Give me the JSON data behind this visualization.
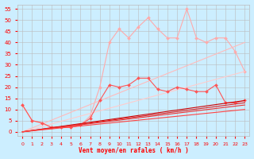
{
  "xlabel": "Vent moyen/en rafales ( km/h )",
  "ylabel": "",
  "xlim": [
    -0.5,
    23.5
  ],
  "ylim": [
    -2,
    57
  ],
  "yticks": [
    0,
    5,
    10,
    15,
    20,
    25,
    30,
    35,
    40,
    45,
    50,
    55
  ],
  "xticks": [
    0,
    1,
    2,
    3,
    4,
    5,
    6,
    7,
    8,
    9,
    10,
    11,
    12,
    13,
    14,
    15,
    16,
    17,
    18,
    19,
    20,
    21,
    22,
    23
  ],
  "background_color": "#cceeff",
  "grid_color": "#bbbbbb",
  "lines": [
    {
      "x": [
        0,
        1,
        2,
        3,
        4,
        5,
        6,
        7,
        8,
        9,
        10,
        11,
        12,
        13,
        14,
        15,
        16,
        17,
        18,
        19,
        20,
        21,
        22,
        23
      ],
      "y": [
        12,
        5,
        4,
        2,
        2,
        2,
        3,
        7,
        20,
        40,
        46,
        42,
        47,
        51,
        46,
        42,
        42,
        55,
        42,
        40,
        42,
        42,
        36,
        27
      ],
      "color": "#ffaaaa",
      "lw": 0.8,
      "marker": "D",
      "ms": 2.0,
      "alpha": 1.0
    },
    {
      "x": [
        0,
        23
      ],
      "y": [
        0,
        40
      ],
      "color": "#ffbbbb",
      "lw": 0.8,
      "marker": null,
      "ms": 0,
      "alpha": 1.0
    },
    {
      "x": [
        0,
        23
      ],
      "y": [
        0,
        27
      ],
      "color": "#ffcccc",
      "lw": 0.8,
      "marker": null,
      "ms": 0,
      "alpha": 1.0
    },
    {
      "x": [
        0,
        1,
        2,
        3,
        4,
        5,
        6,
        7,
        8,
        9,
        10,
        11,
        12,
        13,
        14,
        15,
        16,
        17,
        18,
        19,
        20,
        21,
        22,
        23
      ],
      "y": [
        12,
        5,
        4,
        2,
        2,
        2,
        3,
        6,
        14,
        21,
        20,
        21,
        24,
        24,
        19,
        18,
        20,
        19,
        18,
        18,
        21,
        13,
        13,
        14
      ],
      "color": "#ff5555",
      "lw": 0.8,
      "marker": "D",
      "ms": 2.0,
      "alpha": 1.0
    },
    {
      "x": [
        0,
        23
      ],
      "y": [
        0,
        14
      ],
      "color": "#cc0000",
      "lw": 0.8,
      "marker": null,
      "ms": 0,
      "alpha": 1.0
    },
    {
      "x": [
        0,
        23
      ],
      "y": [
        0,
        13
      ],
      "color": "#dd2222",
      "lw": 0.8,
      "marker": null,
      "ms": 0,
      "alpha": 1.0
    },
    {
      "x": [
        0,
        23
      ],
      "y": [
        0,
        12
      ],
      "color": "#ee3333",
      "lw": 0.8,
      "marker": null,
      "ms": 0,
      "alpha": 1.0
    },
    {
      "x": [
        0,
        23
      ],
      "y": [
        0,
        10
      ],
      "color": "#ff4444",
      "lw": 0.8,
      "marker": null,
      "ms": 0,
      "alpha": 1.0
    }
  ]
}
